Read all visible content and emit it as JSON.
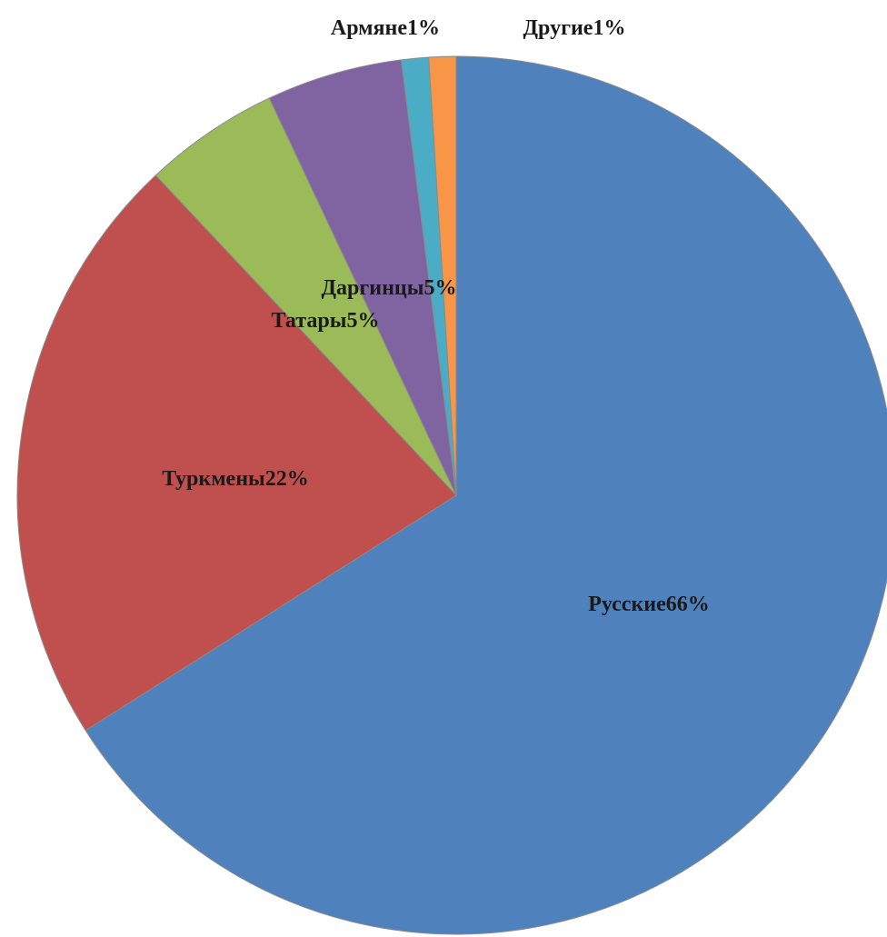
{
  "chart_data": {
    "type": "pie",
    "title": "",
    "start_angle_deg": 0,
    "direction": "clockwise",
    "legend": "none",
    "slices": [
      {
        "label": "Русские",
        "value": 66,
        "value_label": "66%",
        "color": "#4f81bd"
      },
      {
        "label": "Туркмены",
        "value": 22,
        "value_label": "22%",
        "color": "#c0504d"
      },
      {
        "label": "Татары",
        "value": 5,
        "value_label": "5%",
        "color": "#9bbb59"
      },
      {
        "label": "Даргинцы",
        "value": 5,
        "value_label": "5%",
        "color": "#8064a2"
      },
      {
        "label": "Армяне",
        "value": 1,
        "value_label": "1%",
        "color": "#4bacc6"
      },
      {
        "label": "Другие",
        "value": 1,
        "value_label": "1%",
        "color": "#f79646"
      }
    ]
  }
}
